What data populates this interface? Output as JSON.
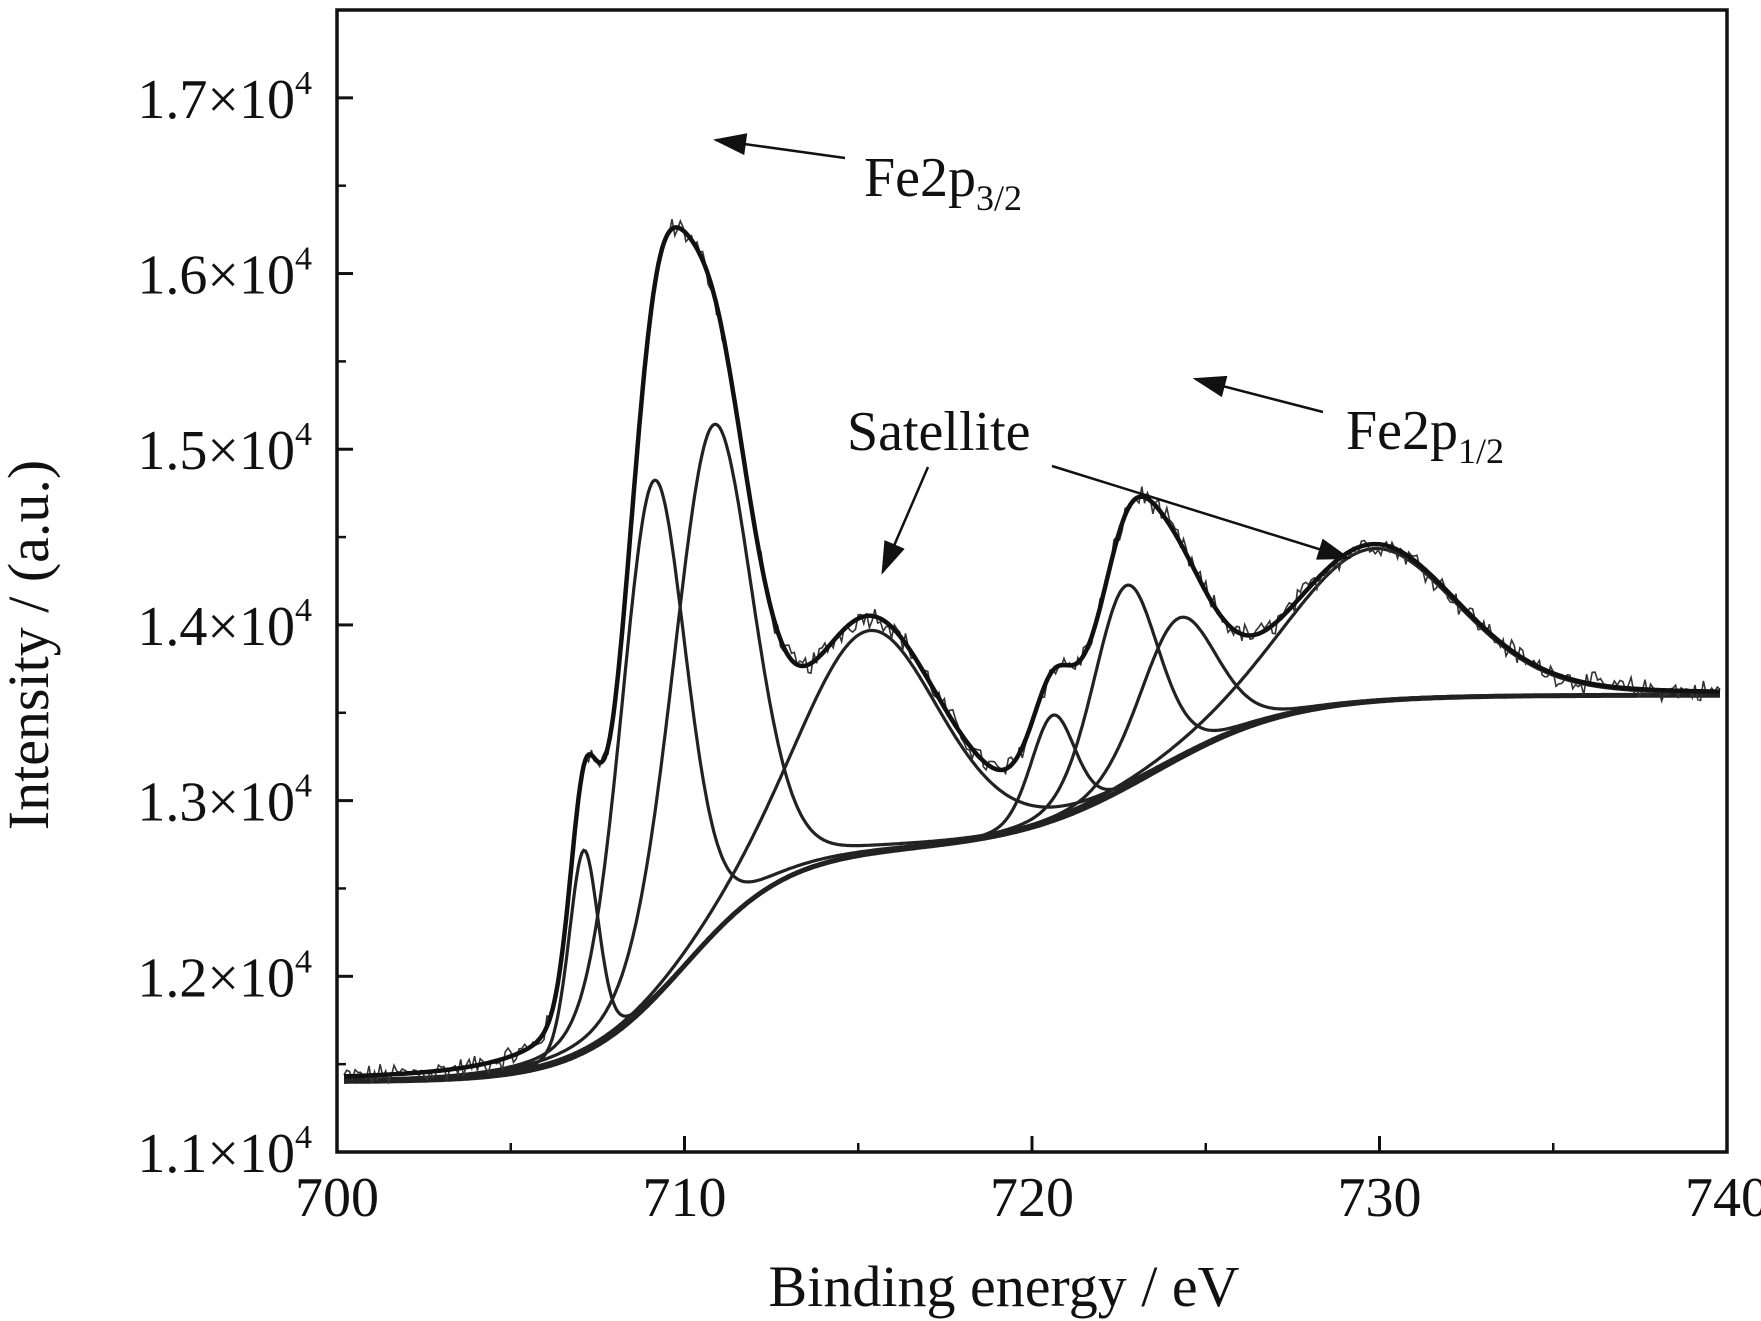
{
  "chart_data": {
    "type": "line",
    "title": "",
    "xlabel": "Binding energy / eV",
    "ylabel": "Intensity / (a.u.)",
    "xlim": [
      700,
      740
    ],
    "ylim": [
      11000,
      17500
    ],
    "x_ticks": [
      {
        "value": 700,
        "label": "700"
      },
      {
        "value": 710,
        "label": "710"
      },
      {
        "value": 720,
        "label": "720"
      },
      {
        "value": 730,
        "label": "730"
      },
      {
        "value": 740,
        "label": "740"
      }
    ],
    "y_ticks": [
      {
        "value": 11000,
        "mant": "1.1×10",
        "exp": "4"
      },
      {
        "value": 12000,
        "mant": "1.2×10",
        "exp": "4"
      },
      {
        "value": 13000,
        "mant": "1.3×10",
        "exp": "4"
      },
      {
        "value": 14000,
        "mant": "1.4×10",
        "exp": "4"
      },
      {
        "value": 15000,
        "mant": "1.5×10",
        "exp": "4"
      },
      {
        "value": 16000,
        "mant": "1.6×10",
        "exp": "4"
      },
      {
        "value": 17000,
        "mant": "1.7×10",
        "exp": "4"
      }
    ],
    "background": {
      "low": 11400,
      "high": 13600,
      "steps": [
        {
          "center": 710.0,
          "width": 1.5,
          "weight": 0.6
        },
        {
          "center": 723.5,
          "width": 2.0,
          "weight": 0.4
        }
      ]
    },
    "peaks": [
      {
        "center": 707.1,
        "height": 1150,
        "fwhm": 1.0
      },
      {
        "center": 709.1,
        "height": 2950,
        "fwhm": 2.2
      },
      {
        "center": 710.8,
        "height": 2900,
        "fwhm": 2.7
      },
      {
        "center": 715.3,
        "height": 1270,
        "fwhm": 4.8
      },
      {
        "center": 720.6,
        "height": 600,
        "fwhm": 1.5
      },
      {
        "center": 722.7,
        "height": 1150,
        "fwhm": 2.2
      },
      {
        "center": 724.2,
        "height": 800,
        "fwhm": 2.6
      },
      {
        "center": 729.8,
        "height": 870,
        "fwhm": 5.8
      }
    ],
    "annotations": [
      {
        "text": "Fe2p",
        "subscript": "3/2",
        "arrow_to": [
          710.9,
          16760
        ]
      },
      {
        "text": "Fe2p",
        "subscript": "1/2",
        "arrow_to": [
          724.7,
          15400
        ]
      },
      {
        "text": "Satellite",
        "subscript": "",
        "arrow_to": [
          715.7,
          14300
        ],
        "arrow_to_2": [
          729.1,
          14380
        ]
      }
    ],
    "grid": false,
    "legend": "none"
  }
}
